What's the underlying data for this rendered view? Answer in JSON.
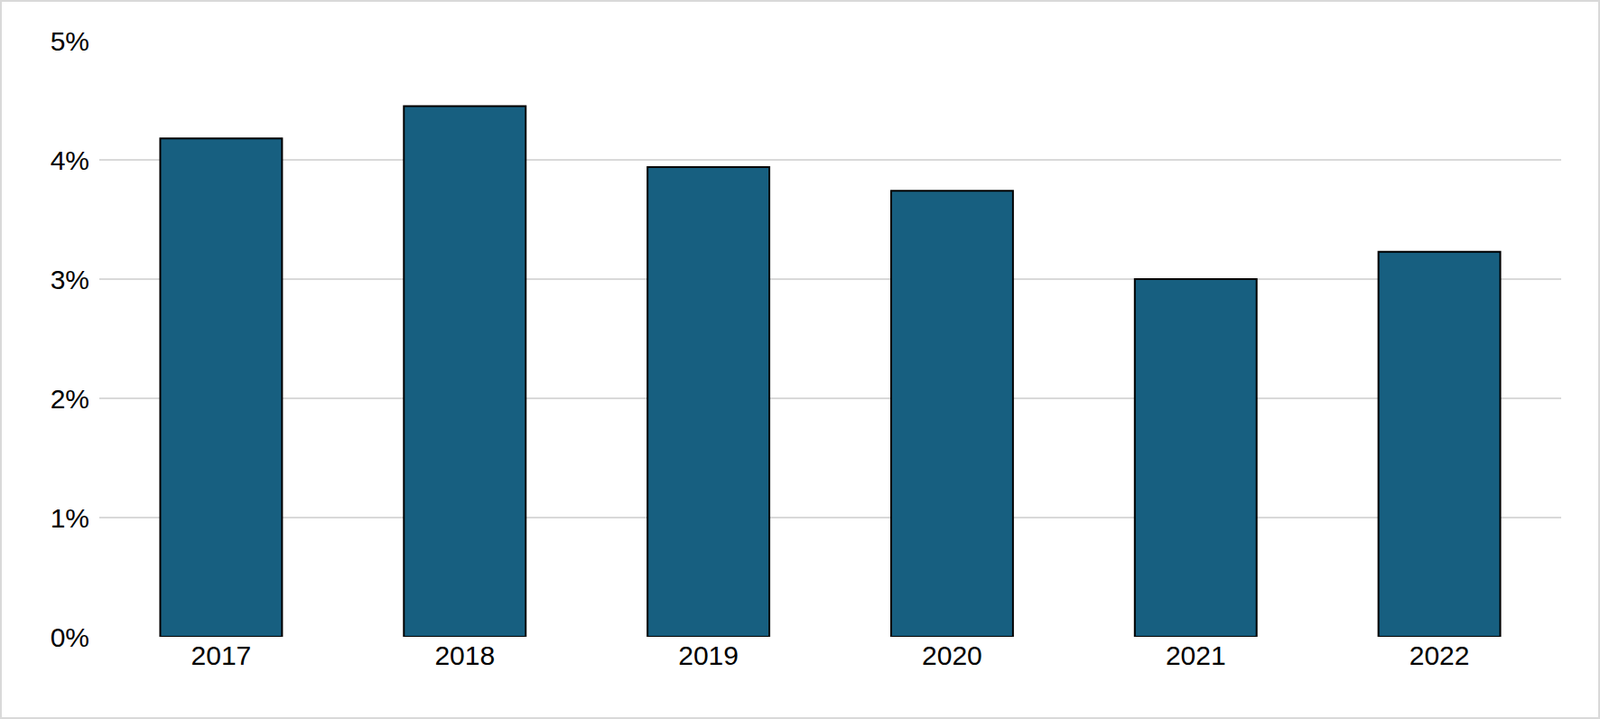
{
  "chart_data": {
    "type": "bar",
    "categories": [
      "2017",
      "2018",
      "2019",
      "2020",
      "2021",
      "2022"
    ],
    "values": [
      4.18,
      4.45,
      3.94,
      3.74,
      3.0,
      3.23
    ],
    "color": "#175f80",
    "ylim": [
      0,
      5
    ],
    "yticks": [
      {
        "value": 0,
        "label": "0%"
      },
      {
        "value": 1,
        "label": "1%"
      },
      {
        "value": 2,
        "label": "2%"
      },
      {
        "value": 3,
        "label": "3%"
      },
      {
        "value": 4,
        "label": "4%"
      },
      {
        "value": 5,
        "label": "5%"
      }
    ],
    "grid": true
  }
}
